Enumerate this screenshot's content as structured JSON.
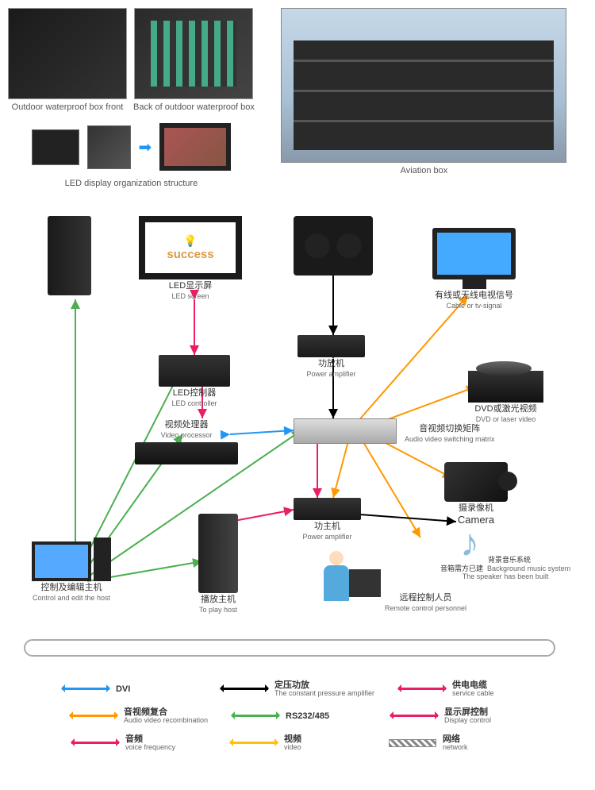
{
  "top": {
    "box_front": "Outdoor waterproof box front",
    "box_back": "Back of outdoor waterproof box",
    "led_structure": "LED display organization structure",
    "aviation": "Aviation box"
  },
  "diagram": {
    "success_text": "success",
    "nodes": {
      "led_screen": {
        "cn": "LED显示屏",
        "en": "LED screen"
      },
      "tv_signal": {
        "cn": "有线或无线电视信号",
        "en": "Cable or tv-signal"
      },
      "led_controller": {
        "cn": "LED控制器",
        "en": "LED controller"
      },
      "power_amp": {
        "cn": "功放机",
        "en": "Power amplifier"
      },
      "video_proc": {
        "cn": "视频处理器",
        "en": "Video processor"
      },
      "matrix": {
        "cn": "音视频切换矩阵",
        "en": "Audio video switching matrix"
      },
      "dvd": {
        "cn": "DVD或激光视频",
        "en": "DVD or laser video"
      },
      "power_amp2": {
        "cn": "功主机",
        "en": "Power amplifier"
      },
      "camera": {
        "cn": "摄录像机",
        "en": "Camera"
      },
      "control_host": {
        "cn": "控制及编辑主机",
        "en": "Control and edit the host"
      },
      "play_host": {
        "cn": "播放主机",
        "en": "To play host"
      },
      "remote": {
        "cn": "远程控制人员",
        "en": "Remote control personnel"
      },
      "bg_music": {
        "cn": "背景音乐系统\n音箱需方已建",
        "en": "Background music system\nThe speaker has been built"
      }
    }
  },
  "legend": {
    "items": [
      {
        "color": "#2196f3",
        "cn": "DVI",
        "en": ""
      },
      {
        "color": "#000000",
        "cn": "定压功放",
        "en": "The constant pressure amplifier"
      },
      {
        "color": "#e91e63",
        "cn": "供电电缆",
        "en": "service cable"
      },
      {
        "color": "#ff9800",
        "cn": "音视频复合",
        "en": "Audio video recombination"
      },
      {
        "color": "#4caf50",
        "cn": "RS232/485",
        "en": ""
      },
      {
        "color": "#e91e63",
        "cn": "显示屏控制",
        "en": "Display control"
      },
      {
        "color": "#e91e63",
        "cn": "音频",
        "en": "voice frequency"
      },
      {
        "color": "#ffc107",
        "cn": "视频",
        "en": "video"
      },
      {
        "hatch": true,
        "cn": "网络",
        "en": "network"
      }
    ]
  },
  "colors": {
    "dvi": "#2196f3",
    "amp": "#000000",
    "service": "#e91e63",
    "av": "#ff9800",
    "rs": "#4caf50",
    "display": "#e91e63",
    "audio": "#e91e63",
    "video": "#ffc107"
  }
}
